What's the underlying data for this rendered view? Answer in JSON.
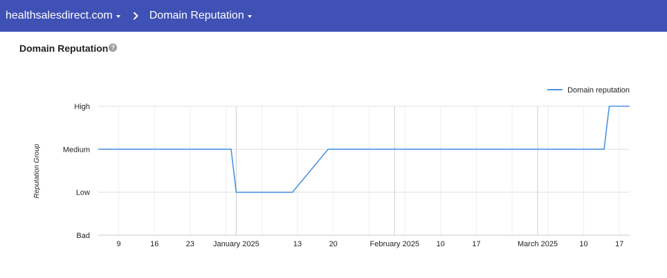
{
  "header": {
    "domain": "healthsalesdirect.com",
    "section": "Domain Reputation"
  },
  "page": {
    "title": "Domain Reputation",
    "help_icon": "help-circle-icon"
  },
  "colors": {
    "header_bg": "#3f51b5",
    "series_line": "#4a90e2"
  },
  "chart_data": {
    "type": "line",
    "ylabel": "Reputation Group",
    "y_categories": [
      "Bad",
      "Low",
      "Medium",
      "High"
    ],
    "x_tick_labels": [
      {
        "label": "9",
        "date": "2024-12-09"
      },
      {
        "label": "16",
        "date": "2024-12-16"
      },
      {
        "label": "23",
        "date": "2024-12-23"
      },
      {
        "label": "January 2025",
        "date": "2025-01-01"
      },
      {
        "label": "13",
        "date": "2025-01-13"
      },
      {
        "label": "20",
        "date": "2025-01-20"
      },
      {
        "label": "February 2025",
        "date": "2025-02-01"
      },
      {
        "label": "10",
        "date": "2025-02-10"
      },
      {
        "label": "17",
        "date": "2025-02-17"
      },
      {
        "label": "March 2025",
        "date": "2025-03-01"
      },
      {
        "label": "10",
        "date": "2025-03-10"
      },
      {
        "label": "17",
        "date": "2025-03-17"
      }
    ],
    "x_range": [
      "2024-12-05",
      "2025-03-19"
    ],
    "legend_position": "top-right",
    "grid": true,
    "series": [
      {
        "name": "Domain reputation",
        "points": [
          {
            "date": "2024-12-05",
            "value": "Medium"
          },
          {
            "date": "2024-12-31",
            "value": "Medium"
          },
          {
            "date": "2025-01-01",
            "value": "Low"
          },
          {
            "date": "2025-01-12",
            "value": "Low"
          },
          {
            "date": "2025-01-19",
            "value": "Medium"
          },
          {
            "date": "2025-03-14",
            "value": "Medium"
          },
          {
            "date": "2025-03-15",
            "value": "High"
          },
          {
            "date": "2025-03-19",
            "value": "High"
          }
        ]
      }
    ]
  }
}
